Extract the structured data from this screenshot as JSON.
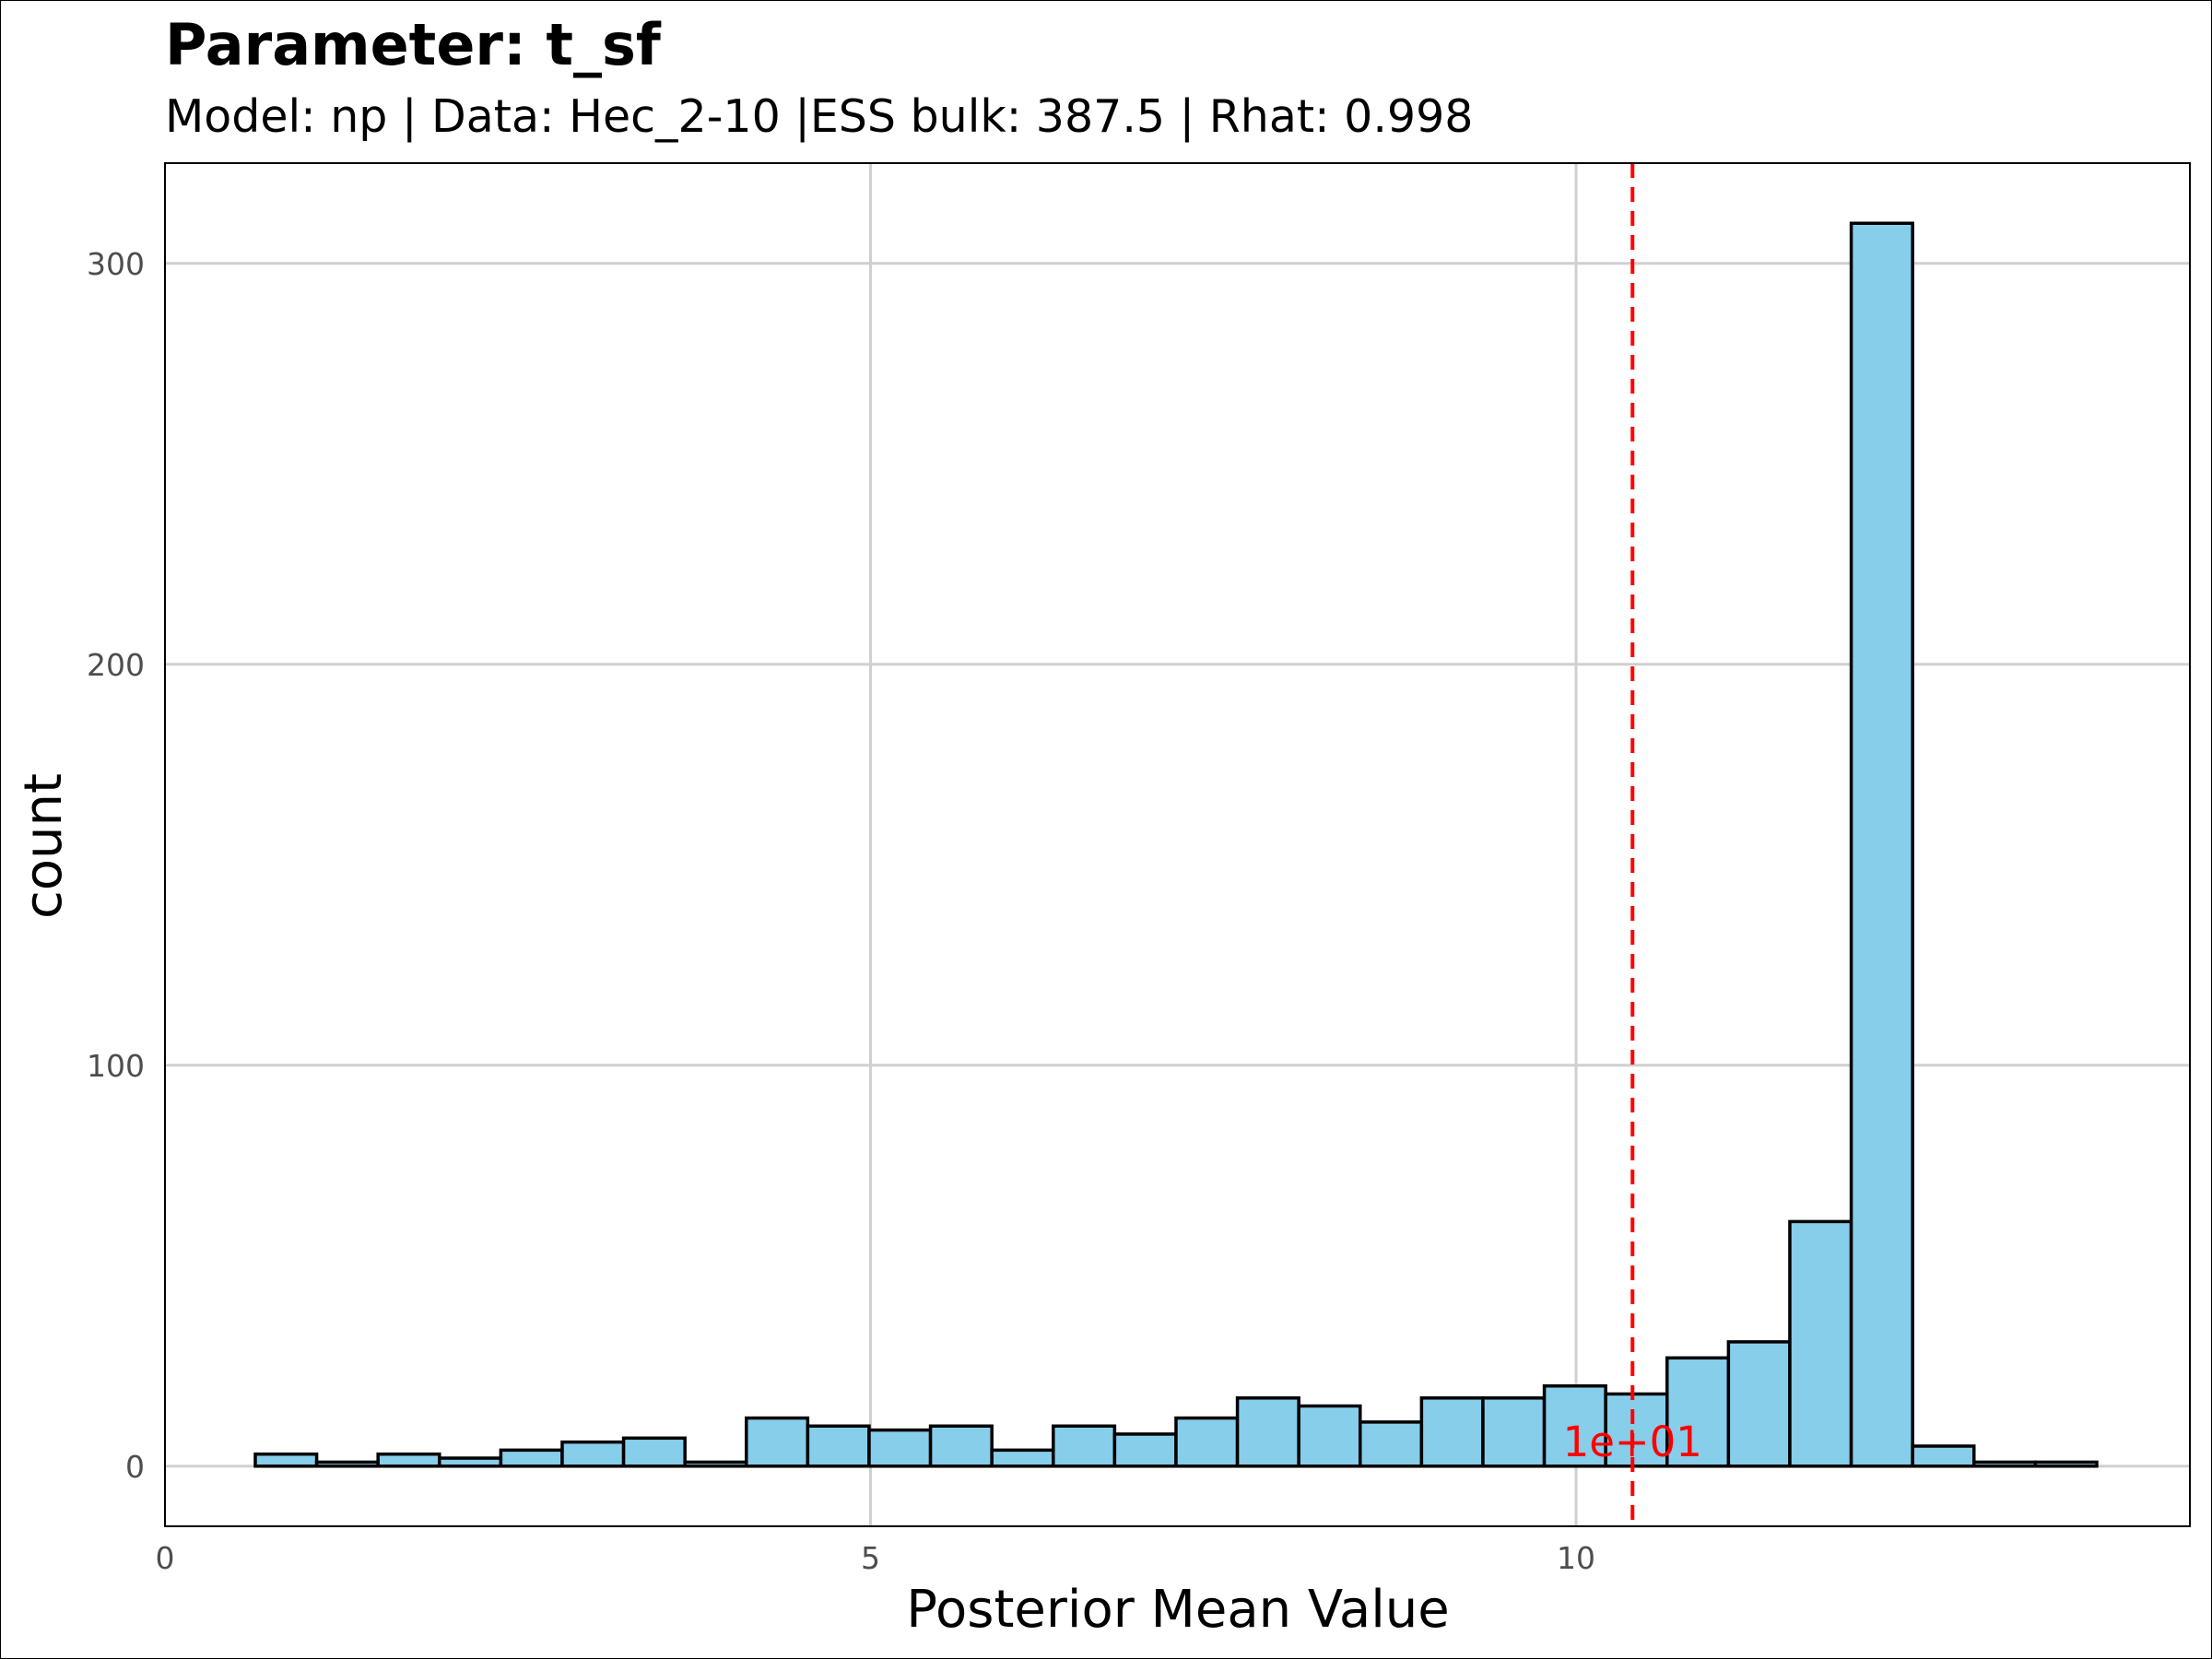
{
  "chart_data": {
    "type": "bar",
    "title": "Parameter: t_sf",
    "subtitle": "Model: np | Data: Hec_2-10 |ESS bulk: 387.5 | Rhat: 0.998",
    "xlabel": "Posterior Mean Value",
    "ylabel": "count",
    "xlim": [
      0,
      14.35
    ],
    "ylim": [
      -15,
      325
    ],
    "x_ticks": [
      0,
      5,
      10
    ],
    "y_ticks": [
      0,
      100,
      200,
      300
    ],
    "bin_width": 0.435,
    "bin_starts": [
      0.64,
      1.075,
      1.51,
      1.945,
      2.38,
      2.815,
      3.25,
      3.685,
      4.12,
      4.555,
      4.99,
      5.425,
      5.86,
      6.295,
      6.73,
      7.165,
      7.6,
      8.035,
      8.47,
      8.905,
      9.34,
      9.775,
      10.21,
      10.645,
      11.08,
      11.515,
      11.95,
      12.385,
      12.82,
      13.255
    ],
    "values": [
      3,
      1,
      3,
      2,
      4,
      6,
      7,
      1,
      12,
      10,
      9,
      10,
      4,
      10,
      8,
      12,
      17,
      15,
      11,
      17,
      17,
      20,
      18,
      27,
      31,
      61,
      310,
      5,
      1,
      1
    ],
    "reference_line": {
      "x": 10.4,
      "label": "1e+01",
      "color": "#ff0000"
    },
    "fill_color": "#87ceeb",
    "edge_color": "#000000",
    "grid": true,
    "legend": "none"
  }
}
